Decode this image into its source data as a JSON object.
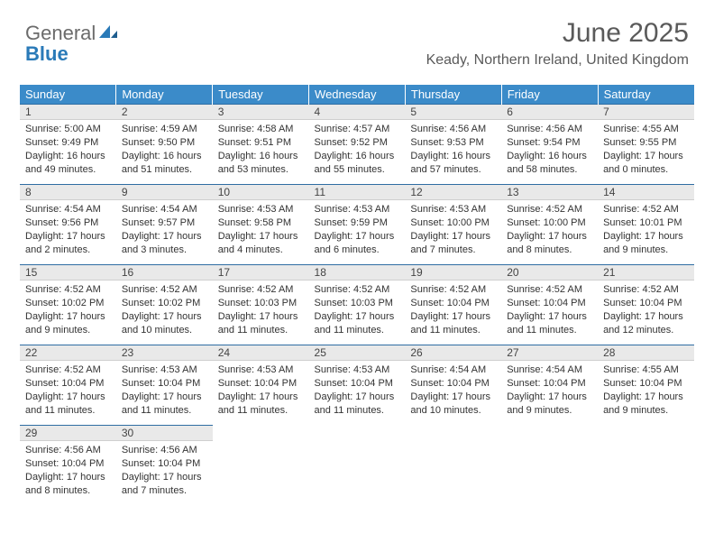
{
  "brand": {
    "part1": "General",
    "part2": "Blue"
  },
  "title": "June 2025",
  "location": "Keady, Northern Ireland, United Kingdom",
  "colors": {
    "header_bg": "#3b8bc9",
    "header_border": "#2f6da3",
    "daynum_bg": "#e9e9e9",
    "logo_gray": "#6b6b6b",
    "logo_blue": "#2a7ab8",
    "text": "#333333",
    "title_color": "#5a5a5a"
  },
  "weekdays": [
    "Sunday",
    "Monday",
    "Tuesday",
    "Wednesday",
    "Thursday",
    "Friday",
    "Saturday"
  ],
  "weeks": [
    [
      {
        "num": "1",
        "sunrise": "5:00 AM",
        "sunset": "9:49 PM",
        "daylight": "16 hours and 49 minutes."
      },
      {
        "num": "2",
        "sunrise": "4:59 AM",
        "sunset": "9:50 PM",
        "daylight": "16 hours and 51 minutes."
      },
      {
        "num": "3",
        "sunrise": "4:58 AM",
        "sunset": "9:51 PM",
        "daylight": "16 hours and 53 minutes."
      },
      {
        "num": "4",
        "sunrise": "4:57 AM",
        "sunset": "9:52 PM",
        "daylight": "16 hours and 55 minutes."
      },
      {
        "num": "5",
        "sunrise": "4:56 AM",
        "sunset": "9:53 PM",
        "daylight": "16 hours and 57 minutes."
      },
      {
        "num": "6",
        "sunrise": "4:56 AM",
        "sunset": "9:54 PM",
        "daylight": "16 hours and 58 minutes."
      },
      {
        "num": "7",
        "sunrise": "4:55 AM",
        "sunset": "9:55 PM",
        "daylight": "17 hours and 0 minutes."
      }
    ],
    [
      {
        "num": "8",
        "sunrise": "4:54 AM",
        "sunset": "9:56 PM",
        "daylight": "17 hours and 2 minutes."
      },
      {
        "num": "9",
        "sunrise": "4:54 AM",
        "sunset": "9:57 PM",
        "daylight": "17 hours and 3 minutes."
      },
      {
        "num": "10",
        "sunrise": "4:53 AM",
        "sunset": "9:58 PM",
        "daylight": "17 hours and 4 minutes."
      },
      {
        "num": "11",
        "sunrise": "4:53 AM",
        "sunset": "9:59 PM",
        "daylight": "17 hours and 6 minutes."
      },
      {
        "num": "12",
        "sunrise": "4:53 AM",
        "sunset": "10:00 PM",
        "daylight": "17 hours and 7 minutes."
      },
      {
        "num": "13",
        "sunrise": "4:52 AM",
        "sunset": "10:00 PM",
        "daylight": "17 hours and 8 minutes."
      },
      {
        "num": "14",
        "sunrise": "4:52 AM",
        "sunset": "10:01 PM",
        "daylight": "17 hours and 9 minutes."
      }
    ],
    [
      {
        "num": "15",
        "sunrise": "4:52 AM",
        "sunset": "10:02 PM",
        "daylight": "17 hours and 9 minutes."
      },
      {
        "num": "16",
        "sunrise": "4:52 AM",
        "sunset": "10:02 PM",
        "daylight": "17 hours and 10 minutes."
      },
      {
        "num": "17",
        "sunrise": "4:52 AM",
        "sunset": "10:03 PM",
        "daylight": "17 hours and 11 minutes."
      },
      {
        "num": "18",
        "sunrise": "4:52 AM",
        "sunset": "10:03 PM",
        "daylight": "17 hours and 11 minutes."
      },
      {
        "num": "19",
        "sunrise": "4:52 AM",
        "sunset": "10:04 PM",
        "daylight": "17 hours and 11 minutes."
      },
      {
        "num": "20",
        "sunrise": "4:52 AM",
        "sunset": "10:04 PM",
        "daylight": "17 hours and 11 minutes."
      },
      {
        "num": "21",
        "sunrise": "4:52 AM",
        "sunset": "10:04 PM",
        "daylight": "17 hours and 12 minutes."
      }
    ],
    [
      {
        "num": "22",
        "sunrise": "4:52 AM",
        "sunset": "10:04 PM",
        "daylight": "17 hours and 11 minutes."
      },
      {
        "num": "23",
        "sunrise": "4:53 AM",
        "sunset": "10:04 PM",
        "daylight": "17 hours and 11 minutes."
      },
      {
        "num": "24",
        "sunrise": "4:53 AM",
        "sunset": "10:04 PM",
        "daylight": "17 hours and 11 minutes."
      },
      {
        "num": "25",
        "sunrise": "4:53 AM",
        "sunset": "10:04 PM",
        "daylight": "17 hours and 11 minutes."
      },
      {
        "num": "26",
        "sunrise": "4:54 AM",
        "sunset": "10:04 PM",
        "daylight": "17 hours and 10 minutes."
      },
      {
        "num": "27",
        "sunrise": "4:54 AM",
        "sunset": "10:04 PM",
        "daylight": "17 hours and 9 minutes."
      },
      {
        "num": "28",
        "sunrise": "4:55 AM",
        "sunset": "10:04 PM",
        "daylight": "17 hours and 9 minutes."
      }
    ],
    [
      {
        "num": "29",
        "sunrise": "4:56 AM",
        "sunset": "10:04 PM",
        "daylight": "17 hours and 8 minutes."
      },
      {
        "num": "30",
        "sunrise": "4:56 AM",
        "sunset": "10:04 PM",
        "daylight": "17 hours and 7 minutes."
      },
      null,
      null,
      null,
      null,
      null
    ]
  ],
  "labels": {
    "sunrise_prefix": "Sunrise: ",
    "sunset_prefix": "Sunset: ",
    "daylight_prefix": "Daylight: "
  }
}
